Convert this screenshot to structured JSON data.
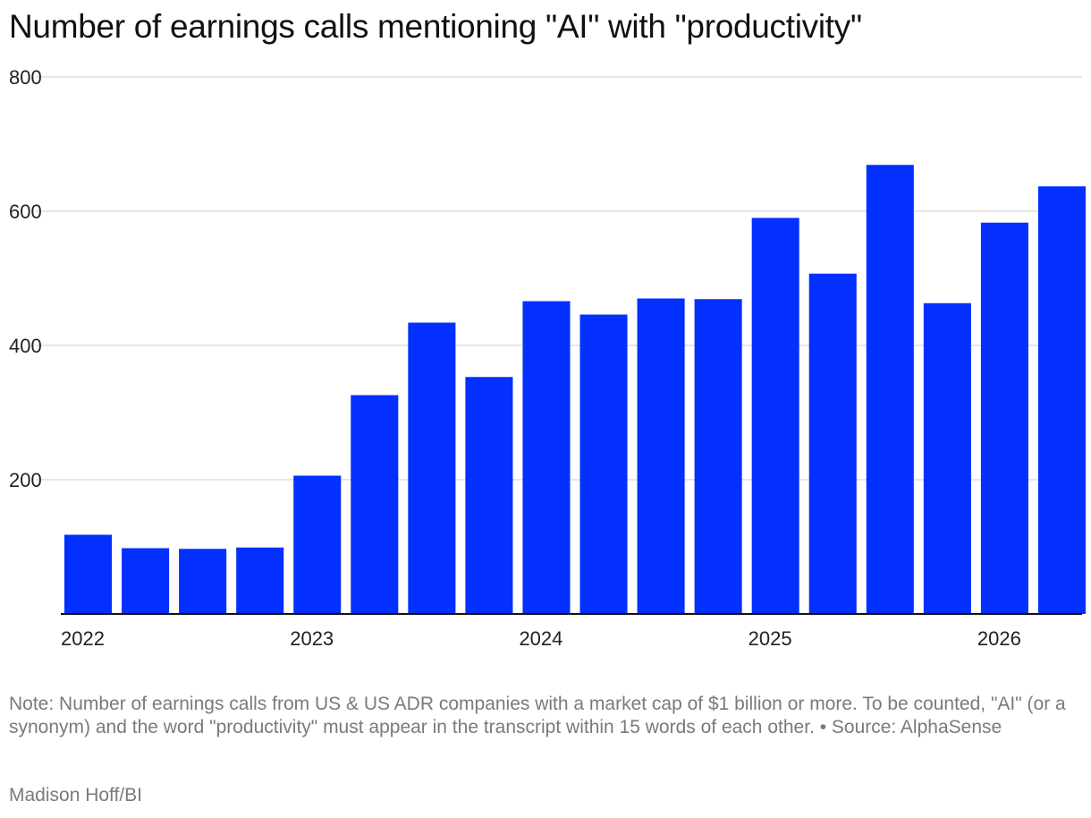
{
  "chart_data": {
    "type": "bar",
    "title": "Number of earnings calls mentioning \"AI\" with \"productivity\"",
    "xlabel": "",
    "ylabel": "",
    "categories": [
      "2022 Q1",
      "2022 Q2",
      "2022 Q3",
      "2022 Q4",
      "2023 Q1",
      "2023 Q2",
      "2023 Q3",
      "2023 Q4",
      "2024 Q1",
      "2024 Q2",
      "2024 Q3",
      "2024 Q4",
      "2025 Q1",
      "2025 Q2",
      "2025 Q3",
      "2025 Q4",
      "2026 Q1",
      "2026 Q2"
    ],
    "values": [
      118,
      98,
      97,
      99,
      206,
      326,
      434,
      353,
      466,
      446,
      470,
      469,
      590,
      507,
      669,
      463,
      583,
      637
    ],
    "ylim": [
      0,
      800
    ],
    "yticks": [
      "200",
      "400",
      "600",
      "800"
    ],
    "xticks": [
      "2022",
      "2023",
      "2024",
      "2025",
      "2026"
    ],
    "grid": true,
    "legend": "none",
    "bar_color": "#0430ff"
  },
  "note": "Note: Number of earnings calls from US & US ADR companies with a market cap of $1 billion or more. To be counted, \"AI\" (or a synonym) and the word \"productivity\" must appear in the transcript within 15 words of each other. • Source: AlphaSense",
  "byline": "Madison Hoff/BI",
  "colors": {
    "grid": "#dddddd",
    "axis": "#111111",
    "footer_text": "#7a7a7a"
  }
}
